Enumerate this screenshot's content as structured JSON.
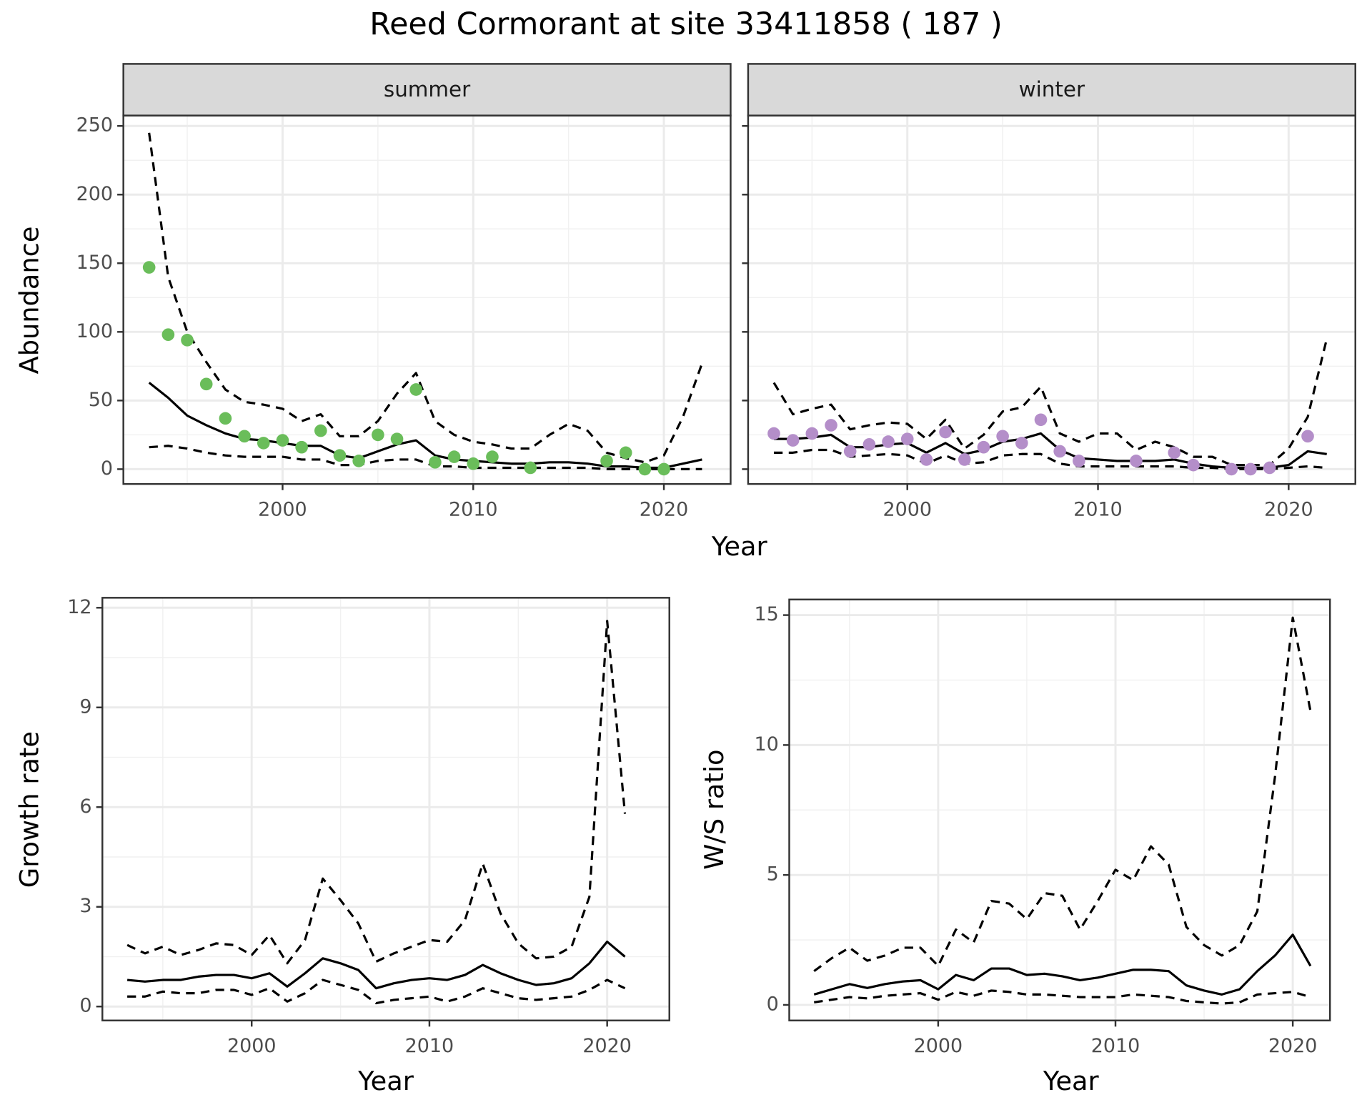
{
  "title": "Reed Cormorant at site 33411858 ( 187 )",
  "chart_data": [
    {
      "type": "line",
      "facet": "summer",
      "x_label": "Year",
      "y_label": "Abundance",
      "x": [
        1993,
        1994,
        1995,
        1996,
        1997,
        1998,
        1999,
        2000,
        2001,
        2002,
        2003,
        2004,
        2005,
        2006,
        2007,
        2008,
        2009,
        2010,
        2011,
        2012,
        2013,
        2014,
        2015,
        2016,
        2017,
        2018,
        2019,
        2020,
        2021,
        2022
      ],
      "series": [
        {
          "style": "solid",
          "color": "#000000",
          "values": [
            63,
            52,
            39,
            32,
            26,
            22,
            21,
            19,
            17,
            17,
            10,
            8,
            13,
            18,
            21,
            10,
            7,
            6,
            5,
            4,
            4,
            5,
            5,
            4,
            2,
            2,
            1,
            1,
            4,
            7
          ]
        },
        {
          "style": "dashed",
          "color": "#000000",
          "values": [
            245,
            140,
            100,
            78,
            58,
            49,
            47,
            44,
            35,
            40,
            24,
            24,
            35,
            55,
            70,
            35,
            25,
            20,
            18,
            15,
            15,
            25,
            33,
            28,
            12,
            8,
            5,
            10,
            38,
            77
          ]
        },
        {
          "style": "dashed",
          "color": "#000000",
          "values": [
            16,
            17,
            15,
            12,
            10,
            9,
            9,
            9,
            7,
            7,
            3,
            3,
            6,
            7,
            7,
            2,
            2,
            1,
            1,
            1,
            1,
            1,
            1,
            1,
            0,
            0,
            0,
            0,
            0,
            0
          ]
        }
      ],
      "points": {
        "color": "#6abd5a",
        "x": [
          1993,
          1994,
          1995,
          1996,
          1997,
          1998,
          1999,
          2000,
          2001,
          2002,
          2003,
          2004,
          2005,
          2006,
          2007,
          2008,
          2009,
          2010,
          2011,
          2013,
          2017,
          2018,
          2019,
          2020
        ],
        "values": [
          147,
          98,
          94,
          62,
          37,
          24,
          19,
          21,
          16,
          28,
          10,
          6,
          25,
          22,
          58,
          5,
          9,
          4,
          9,
          1,
          6,
          12,
          0,
          0
        ]
      },
      "xlim": [
        1991.65,
        2023.5
      ],
      "xticks": [
        2000,
        2010,
        2020
      ],
      "ylim": [
        -10.8,
        257.6
      ],
      "yticks": [
        0,
        50,
        100,
        150,
        200,
        250
      ],
      "ytick_labels": true,
      "grid": true
    },
    {
      "type": "line",
      "facet": "winter",
      "x": [
        1993,
        1994,
        1995,
        1996,
        1997,
        1998,
        1999,
        2000,
        2001,
        2002,
        2003,
        2004,
        2005,
        2006,
        2007,
        2008,
        2009,
        2010,
        2011,
        2012,
        2013,
        2014,
        2015,
        2016,
        2017,
        2018,
        2019,
        2020,
        2021,
        2022
      ],
      "series": [
        {
          "style": "solid",
          "color": "#000000",
          "values": [
            22,
            22,
            23,
            25,
            16,
            16,
            18,
            19,
            12,
            19,
            11,
            14,
            20,
            22,
            26,
            14,
            8,
            7,
            6,
            6,
            6,
            7,
            4,
            2,
            1,
            1,
            1,
            3,
            13,
            11
          ]
        },
        {
          "style": "dashed",
          "color": "#000000",
          "values": [
            63,
            40,
            44,
            47,
            29,
            32,
            34,
            33,
            22,
            36,
            15,
            25,
            42,
            45,
            60,
            26,
            20,
            26,
            26,
            14,
            20,
            16,
            9,
            9,
            3,
            3,
            3,
            15,
            38,
            95
          ]
        },
        {
          "style": "dashed",
          "color": "#000000",
          "values": [
            12,
            12,
            14,
            14,
            9,
            10,
            11,
            10,
            4,
            10,
            4,
            5,
            10,
            11,
            11,
            4,
            2,
            2,
            2,
            2,
            2,
            2,
            1,
            1,
            0,
            0,
            0,
            1,
            2,
            1
          ]
        }
      ],
      "points": {
        "color": "#b48ec9",
        "x": [
          1993,
          1994,
          1995,
          1996,
          1997,
          1998,
          1999,
          2000,
          2001,
          2002,
          2003,
          2004,
          2005,
          2006,
          2007,
          2008,
          2009,
          2012,
          2014,
          2015,
          2017,
          2018,
          2019,
          2021
        ],
        "values": [
          26,
          21,
          26,
          32,
          13,
          18,
          20,
          22,
          7,
          27,
          7,
          16,
          24,
          19,
          36,
          13,
          6,
          6,
          12,
          3,
          0,
          0,
          1,
          24
        ]
      },
      "xlim": [
        1991.65,
        2023.5
      ],
      "xticks": [
        2000,
        2010,
        2020
      ],
      "ylim": [
        -10.8,
        257.6
      ],
      "yticks": [
        0,
        50,
        100,
        150,
        200,
        250
      ],
      "ytick_labels": false,
      "grid": true
    },
    {
      "type": "line",
      "x_label": "Year",
      "y_label": "Growth rate",
      "x": [
        1993,
        1994,
        1995,
        1996,
        1997,
        1998,
        1999,
        2000,
        2001,
        2002,
        2003,
        2004,
        2005,
        2006,
        2007,
        2008,
        2009,
        2010,
        2011,
        2012,
        2013,
        2014,
        2015,
        2016,
        2017,
        2018,
        2019,
        2020,
        2021
      ],
      "series": [
        {
          "style": "solid",
          "color": "#000000",
          "values": [
            0.8,
            0.75,
            0.8,
            0.8,
            0.9,
            0.95,
            0.95,
            0.85,
            1.0,
            0.6,
            1.0,
            1.45,
            1.3,
            1.1,
            0.55,
            0.7,
            0.8,
            0.85,
            0.8,
            0.95,
            1.25,
            1.0,
            0.8,
            0.65,
            0.7,
            0.85,
            1.3,
            1.95,
            1.5
          ]
        },
        {
          "style": "dashed",
          "color": "#000000",
          "values": [
            1.85,
            1.6,
            1.8,
            1.55,
            1.7,
            1.9,
            1.85,
            1.55,
            2.15,
            1.3,
            2.0,
            3.85,
            3.2,
            2.5,
            1.35,
            1.6,
            1.8,
            2.0,
            1.95,
            2.6,
            4.3,
            2.8,
            1.9,
            1.45,
            1.5,
            1.8,
            3.3,
            11.6,
            5.8
          ]
        },
        {
          "style": "dashed",
          "color": "#000000",
          "values": [
            0.3,
            0.3,
            0.45,
            0.4,
            0.4,
            0.5,
            0.5,
            0.35,
            0.55,
            0.15,
            0.4,
            0.8,
            0.65,
            0.5,
            0.1,
            0.2,
            0.25,
            0.3,
            0.15,
            0.3,
            0.55,
            0.4,
            0.25,
            0.2,
            0.25,
            0.3,
            0.5,
            0.8,
            0.55
          ]
        }
      ],
      "xlim": [
        1991.6,
        2023.5
      ],
      "xticks": [
        2000,
        2010,
        2020
      ],
      "ylim": [
        -0.42,
        12.3
      ],
      "yticks": [
        0,
        3,
        6,
        9,
        12
      ],
      "ytick_labels": true,
      "grid": true
    },
    {
      "type": "line",
      "x_label": "Year",
      "y_label": "W/S ratio",
      "x": [
        1993,
        1994,
        1995,
        1996,
        1997,
        1998,
        1999,
        2000,
        2001,
        2002,
        2003,
        2004,
        2005,
        2006,
        2007,
        2008,
        2009,
        2010,
        2011,
        2012,
        2013,
        2014,
        2015,
        2016,
        2017,
        2018,
        2019,
        2020,
        2021
      ],
      "series": [
        {
          "style": "solid",
          "color": "#000000",
          "values": [
            0.4,
            0.6,
            0.8,
            0.65,
            0.8,
            0.9,
            0.95,
            0.6,
            1.15,
            0.95,
            1.4,
            1.4,
            1.15,
            1.2,
            1.1,
            0.95,
            1.05,
            1.2,
            1.35,
            1.35,
            1.3,
            0.75,
            0.55,
            0.4,
            0.6,
            1.3,
            1.9,
            2.7,
            1.5
          ]
        },
        {
          "style": "dashed",
          "color": "#000000",
          "values": [
            1.3,
            1.8,
            2.2,
            1.7,
            1.9,
            2.2,
            2.2,
            1.5,
            2.9,
            2.4,
            4.0,
            3.9,
            3.3,
            4.3,
            4.2,
            2.9,
            4.0,
            5.2,
            4.8,
            6.1,
            5.4,
            3.0,
            2.3,
            1.9,
            2.3,
            3.6,
            8.8,
            14.9,
            11.3
          ]
        },
        {
          "style": "dashed",
          "color": "#000000",
          "values": [
            0.1,
            0.2,
            0.3,
            0.25,
            0.35,
            0.4,
            0.45,
            0.2,
            0.5,
            0.35,
            0.55,
            0.5,
            0.4,
            0.4,
            0.35,
            0.3,
            0.3,
            0.3,
            0.4,
            0.35,
            0.3,
            0.15,
            0.1,
            0.05,
            0.1,
            0.4,
            0.45,
            0.5,
            0.3
          ]
        }
      ],
      "xlim": [
        1991.6,
        2022.1
      ],
      "xticks": [
        2000,
        2010,
        2020
      ],
      "ylim": [
        -0.6,
        15.6
      ],
      "yticks": [
        0,
        5,
        10,
        15
      ],
      "ytick_labels": true,
      "grid": true
    }
  ]
}
